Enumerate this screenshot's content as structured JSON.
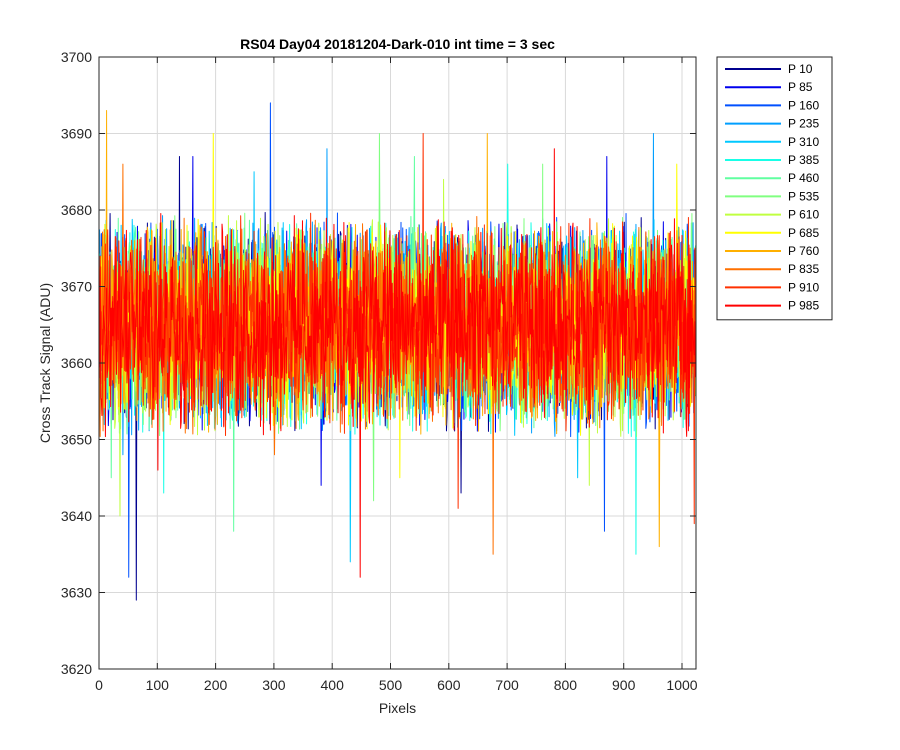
{
  "chart_data": {
    "type": "line",
    "title": "RS04 Day04 20181204-Dark-010 int time = 3 sec",
    "xlabel": "Pixels",
    "ylabel": "Cross Track Signal (ADU)",
    "xlim": [
      0,
      1024
    ],
    "ylim": [
      3620,
      3700
    ],
    "xticks": [
      0,
      100,
      200,
      300,
      400,
      500,
      600,
      700,
      800,
      900,
      1000
    ],
    "yticks": [
      3620,
      3630,
      3640,
      3650,
      3660,
      3670,
      3680,
      3690,
      3700
    ],
    "grid": true,
    "legend_position": "outside-top-right",
    "n_points": 1024,
    "noise": {
      "mean": 3665,
      "half_range": 13
    },
    "series": [
      {
        "name": "P 10",
        "color": "#00008f",
        "extremes": [
          [
            63,
            3629
          ],
          [
            137,
            3687
          ],
          [
            620,
            3643
          ]
        ]
      },
      {
        "name": "P 85",
        "color": "#0000ee",
        "extremes": [
          [
            160,
            3687
          ],
          [
            380,
            3644
          ],
          [
            870,
            3687
          ]
        ]
      },
      {
        "name": "P 160",
        "color": "#0050ff",
        "extremes": [
          [
            293,
            3694
          ],
          [
            50,
            3632
          ],
          [
            866,
            3638
          ]
        ]
      },
      {
        "name": "P 235",
        "color": "#009fff",
        "extremes": [
          [
            390,
            3688
          ],
          [
            950,
            3690
          ],
          [
            40,
            3648
          ]
        ]
      },
      {
        "name": "P 310",
        "color": "#00c8ff",
        "extremes": [
          [
            430,
            3634
          ],
          [
            820,
            3645
          ],
          [
            265,
            3685
          ]
        ]
      },
      {
        "name": "P 385",
        "color": "#18ffe7",
        "extremes": [
          [
            920,
            3635
          ],
          [
            700,
            3686
          ],
          [
            110,
            3643
          ]
        ]
      },
      {
        "name": "P 460",
        "color": "#60ffa0",
        "extremes": [
          [
            230,
            3638
          ],
          [
            540,
            3687
          ],
          [
            20,
            3645
          ]
        ]
      },
      {
        "name": "P 535",
        "color": "#80ff80",
        "extremes": [
          [
            480,
            3690
          ],
          [
            470,
            3642
          ],
          [
            760,
            3686
          ]
        ]
      },
      {
        "name": "P 610",
        "color": "#c0ff40",
        "extremes": [
          [
            35,
            3640
          ],
          [
            590,
            3684
          ],
          [
            840,
            3644
          ]
        ]
      },
      {
        "name": "P 685",
        "color": "#ffff00",
        "extremes": [
          [
            195,
            3690
          ],
          [
            515,
            3645
          ],
          [
            990,
            3686
          ]
        ]
      },
      {
        "name": "P 760",
        "color": "#ffb000",
        "extremes": [
          [
            12,
            3693
          ],
          [
            960,
            3636
          ],
          [
            665,
            3690
          ]
        ]
      },
      {
        "name": "P 835",
        "color": "#ff7000",
        "extremes": [
          [
            40,
            3686
          ],
          [
            675,
            3635
          ],
          [
            300,
            3648
          ]
        ]
      },
      {
        "name": "P 910",
        "color": "#ff3000",
        "extremes": [
          [
            555,
            3690
          ],
          [
            615,
            3641
          ],
          [
            1020,
            3639
          ]
        ]
      },
      {
        "name": "P 985",
        "color": "#ff0000",
        "extremes": [
          [
            447,
            3632
          ],
          [
            780,
            3688
          ],
          [
            100,
            3646
          ]
        ]
      }
    ]
  }
}
